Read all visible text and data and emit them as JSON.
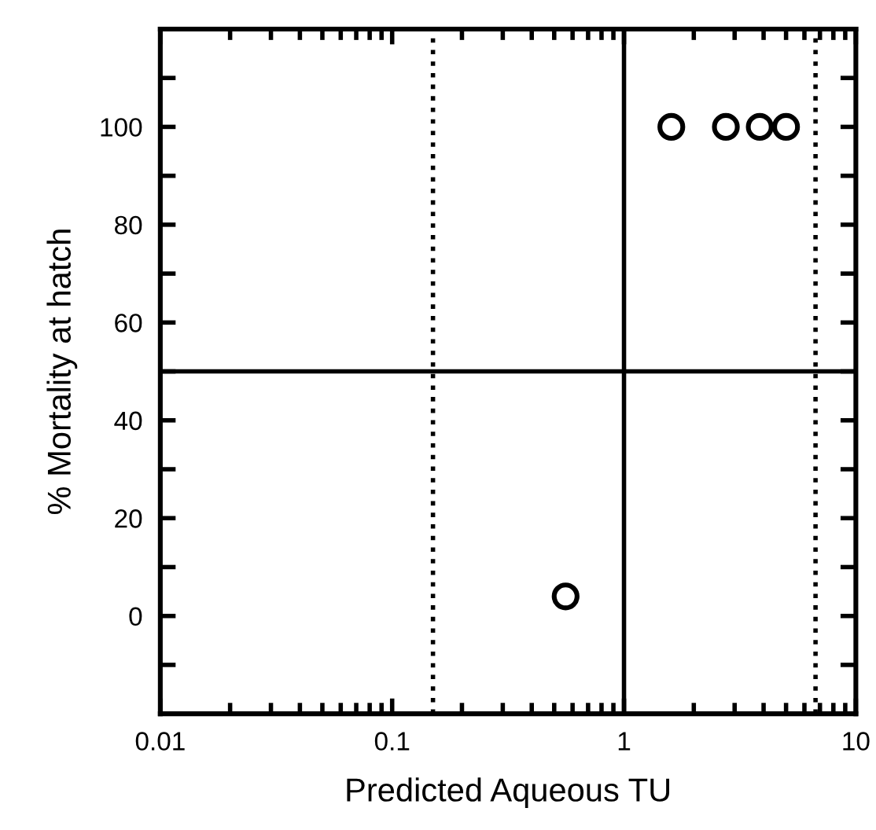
{
  "chart_data": {
    "type": "scatter",
    "xlabel": "Predicted Aqueous TU",
    "ylabel": "% Mortality at hatch",
    "log": "x",
    "x": [
      0.56,
      1.6,
      2.75,
      3.85,
      5.0
    ],
    "series": [
      {
        "color": "#000000",
        "values": [
          4,
          100,
          100,
          100,
          100
        ]
      }
    ],
    "marker": "circle",
    "grid": false,
    "xlim": [
      0.01,
      10
    ],
    "xticks": [
      0.01,
      0.1,
      1,
      10
    ],
    "ylim": [
      -20,
      120
    ],
    "yticks": [
      {
        "value": -10,
        "label": null
      },
      0,
      {
        "value": 10,
        "label": null
      },
      20,
      {
        "value": 30,
        "label": null
      },
      40,
      {
        "value": 50,
        "label": null
      },
      60,
      {
        "value": 70,
        "label": null
      },
      80,
      {
        "value": 90,
        "label": null
      },
      100,
      {
        "value": 110,
        "label": null
      }
    ],
    "ref_lines": [
      {
        "axis": "y",
        "value": 50,
        "line_style": "solid",
        "color": "#000000"
      },
      {
        "axis": "x",
        "value": 1,
        "line_style": "solid",
        "color": "#000000"
      },
      {
        "axis": "x",
        "value": 0.15,
        "line_style": "dotted",
        "color": "#000000"
      },
      {
        "axis": "x",
        "value": 6.7,
        "line_style": "dotted",
        "color": "#000000"
      }
    ]
  }
}
